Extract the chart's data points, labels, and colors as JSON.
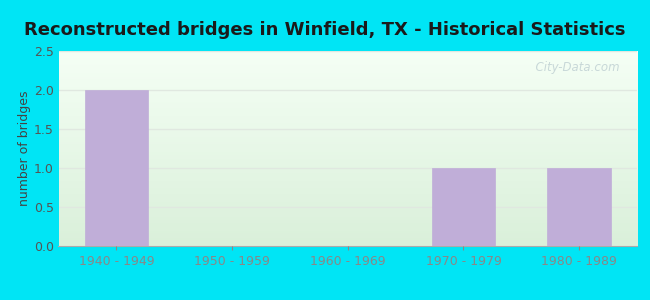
{
  "title": "Reconstructed bridges in Winfield, TX - Historical Statistics",
  "categories": [
    "1940 - 1949",
    "1950 - 1959",
    "1960 - 1969",
    "1970 - 1979",
    "1980 - 1989"
  ],
  "values": [
    2,
    0,
    0,
    1,
    1
  ],
  "bar_color": "#c0aed8",
  "bar_edgecolor": "#c0aed8",
  "ylabel": "number of bridges",
  "ylim": [
    0,
    2.5
  ],
  "yticks": [
    0,
    0.5,
    1,
    1.5,
    2,
    2.5
  ],
  "background_outer": "#00e5f5",
  "background_top": "#f5fff5",
  "background_bottom": "#daf0da",
  "title_fontsize": 13,
  "axis_label_fontsize": 9,
  "tick_fontsize": 9,
  "watermark_text": "  City-Data.com",
  "watermark_color": "#c8d8d8",
  "grid_color": "#e0e8e0"
}
